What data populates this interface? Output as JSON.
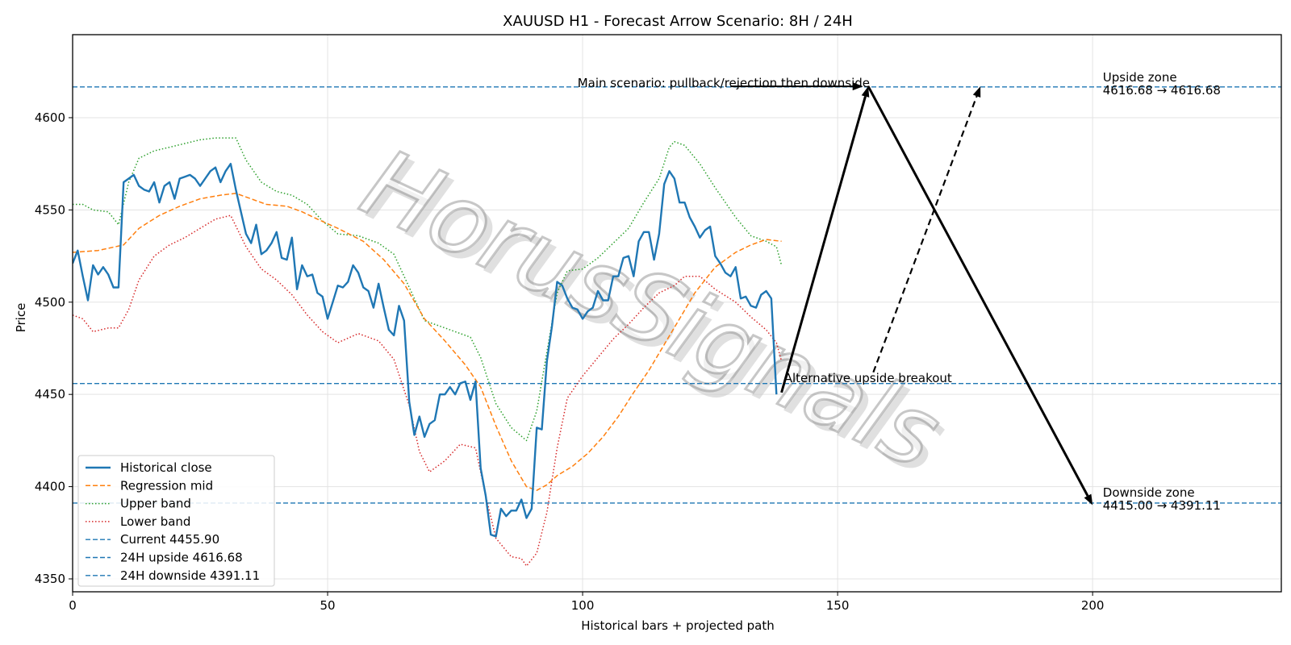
{
  "chart_data": {
    "type": "line",
    "title": "XAUUSD H1 - Forecast Arrow Scenario: 8H / 24H",
    "xlabel": "Historical bars + projected path",
    "ylabel": "Price",
    "xlim": [
      0,
      237
    ],
    "ylim": [
      4343,
      4645
    ],
    "grid": true,
    "legend_position": "lower-left",
    "x_ticks": [
      0,
      50,
      100,
      150,
      200
    ],
    "x_tick_labels": [
      "0",
      "50",
      "100",
      "150",
      "200"
    ],
    "y_ticks": [
      4350,
      4400,
      4450,
      4500,
      4550,
      4600
    ],
    "y_tick_labels": [
      "4350",
      "4400",
      "4450",
      "4500",
      "4550",
      "4600"
    ],
    "colors": {
      "historical_close": "#1f77b4",
      "regression_mid": "#ff7f0e",
      "upper_band": "#2ca02c",
      "lower_band": "#d62728",
      "hlines": "#1f77b4",
      "arrows": "#000000"
    },
    "series": [
      {
        "name": "Historical close",
        "style": "solid",
        "x": [
          0,
          1,
          2,
          3,
          4,
          5,
          6,
          7,
          8,
          9,
          10,
          11,
          12,
          13,
          14,
          15,
          16,
          17,
          18,
          19,
          20,
          21,
          22,
          23,
          24,
          25,
          26,
          27,
          28,
          29,
          30,
          31,
          32,
          33,
          34,
          35,
          36,
          37,
          38,
          39,
          40,
          41,
          42,
          43,
          44,
          45,
          46,
          47,
          48,
          49,
          50,
          51,
          52,
          53,
          54,
          55,
          56,
          57,
          58,
          59,
          60,
          61,
          62,
          63,
          64,
          65,
          66,
          67,
          68,
          69,
          70,
          71,
          72,
          73,
          74,
          75,
          76,
          77,
          78,
          79,
          80,
          81,
          82,
          83,
          84,
          85,
          86,
          87,
          88,
          89,
          90,
          91,
          92,
          93,
          94,
          95,
          96,
          97,
          98,
          99,
          100,
          101,
          102,
          103,
          104,
          105,
          106,
          107,
          108,
          109,
          110,
          111,
          112,
          113,
          114,
          115,
          116,
          117,
          118,
          119,
          120,
          121,
          122,
          123,
          124,
          125,
          126,
          127,
          128,
          129,
          130,
          131,
          132,
          133,
          134,
          135,
          136,
          137,
          138
        ],
        "y": [
          4521,
          4528,
          4514,
          4501,
          4520,
          4515,
          4519,
          4515,
          4508,
          4508,
          4565,
          4567,
          4569,
          4563,
          4561,
          4560,
          4565,
          4554,
          4563,
          4565,
          4556,
          4567,
          4568,
          4569,
          4567,
          4563,
          4567,
          4571,
          4573,
          4565,
          4571,
          4575,
          4561,
          4549,
          4537,
          4532,
          4542,
          4526,
          4528,
          4532,
          4538,
          4524,
          4523,
          4535,
          4507,
          4520,
          4514,
          4515,
          4505,
          4503,
          4491,
          4500,
          4509,
          4508,
          4511,
          4520,
          4516,
          4508,
          4506,
          4497,
          4510,
          4497,
          4485,
          4482,
          4498,
          4490,
          4446,
          4428,
          4438,
          4427,
          4434,
          4436,
          4450,
          4450,
          4454,
          4450,
          4456,
          4457,
          4447,
          4457,
          4410,
          4395,
          4374,
          4373,
          4388,
          4384,
          4387,
          4387,
          4393,
          4383,
          4388,
          4432,
          4431,
          4468,
          4487,
          4511,
          4509,
          4502,
          4497,
          4496,
          4491,
          4495,
          4497,
          4506,
          4501,
          4501,
          4514,
          4514,
          4524,
          4525,
          4514,
          4533,
          4538,
          4538,
          4523,
          4537,
          4564,
          4571,
          4567,
          4554,
          4554,
          4546,
          4541,
          4535,
          4539,
          4541,
          4525,
          4521,
          4516,
          4514,
          4519,
          4502,
          4503,
          4498,
          4497,
          4504,
          4506,
          4502,
          4450
        ]
      },
      {
        "name": "Regression mid",
        "style": "dashed",
        "x": [
          0,
          5,
          10,
          13,
          17,
          21,
          25,
          29,
          32,
          35,
          38,
          42,
          45,
          48,
          52,
          57,
          61,
          65,
          69,
          73,
          77,
          80,
          83,
          86,
          89,
          91,
          93,
          95,
          98,
          101,
          104,
          107,
          110,
          113,
          116,
          119,
          122,
          126,
          130,
          133,
          136,
          139
        ],
        "y": [
          4527,
          4528,
          4531,
          4540,
          4547,
          4552,
          4556,
          4558,
          4559,
          4556,
          4553,
          4552,
          4549,
          4545,
          4540,
          4533,
          4523,
          4510,
          4491,
          4479,
          4466,
          4454,
          4433,
          4414,
          4400,
          4398,
          4401,
          4406,
          4411,
          4418,
          4427,
          4438,
          4451,
          4463,
          4477,
          4491,
          4505,
          4519,
          4527,
          4531,
          4534,
          4533
        ]
      },
      {
        "name": "Upper band",
        "style": "dotted",
        "x": [
          0,
          2,
          4,
          7,
          9,
          11,
          13,
          16,
          19,
          22,
          25,
          28,
          32,
          34,
          37,
          40,
          43,
          46,
          49,
          52,
          56,
          60,
          63,
          66,
          69,
          72,
          75,
          78,
          80,
          83,
          86,
          89,
          91,
          93,
          95,
          97,
          100,
          103,
          106,
          109,
          112,
          115,
          117,
          118,
          120,
          123,
          126,
          130,
          133,
          136,
          138,
          139
        ],
        "y": [
          4553,
          4553,
          4550,
          4549,
          4542,
          4565,
          4578,
          4582,
          4584,
          4586,
          4588,
          4589,
          4589,
          4577,
          4565,
          4560,
          4558,
          4553,
          4544,
          4537,
          4536,
          4532,
          4526,
          4508,
          4490,
          4487,
          4484,
          4481,
          4470,
          4445,
          4432,
          4425,
          4441,
          4473,
          4505,
          4517,
          4518,
          4524,
          4532,
          4540,
          4554,
          4567,
          4584,
          4587,
          4585,
          4575,
          4562,
          4546,
          4536,
          4533,
          4530,
          4520
        ]
      },
      {
        "name": "Lower band",
        "style": "dotted",
        "x": [
          0,
          2,
          4,
          7,
          9,
          11,
          13,
          16,
          19,
          22,
          25,
          28,
          31,
          34,
          37,
          40,
          43,
          46,
          49,
          52,
          56,
          60,
          63,
          66,
          68,
          70,
          73,
          76,
          79,
          81,
          83,
          86,
          88,
          89,
          91,
          93,
          95,
          97,
          100,
          103,
          106,
          109,
          112,
          115,
          118,
          120,
          123,
          126,
          130,
          133,
          136,
          138,
          139
        ],
        "y": [
          4493,
          4491,
          4484,
          4486,
          4486,
          4496,
          4512,
          4525,
          4531,
          4535,
          4540,
          4545,
          4547,
          4530,
          4518,
          4512,
          4504,
          4493,
          4484,
          4478,
          4483,
          4479,
          4469,
          4444,
          4419,
          4408,
          4414,
          4423,
          4421,
          4395,
          4372,
          4362,
          4361,
          4357,
          4364,
          4386,
          4421,
          4448,
          4460,
          4470,
          4480,
          4488,
          4497,
          4505,
          4509,
          4514,
          4514,
          4507,
          4500,
          4492,
          4485,
          4478,
          4468
        ]
      }
    ],
    "hlines": [
      {
        "name": "Current 4455.90",
        "y": 4455.9
      },
      {
        "name": "24H upside 4616.68",
        "y": 4616.68
      },
      {
        "name": "24H downside 4391.11",
        "y": 4391.11
      }
    ],
    "arrows": [
      {
        "name": "main-up",
        "from": [
          139,
          4451
        ],
        "to": [
          156,
          4617
        ],
        "style": "solid"
      },
      {
        "name": "main-down",
        "from": [
          156,
          4617
        ],
        "to": [
          200,
          4390
        ],
        "style": "solid"
      },
      {
        "name": "alternative",
        "from": [
          157,
          4462
        ],
        "to": [
          178,
          4617
        ],
        "style": "dashed"
      },
      {
        "name": "main-pointer",
        "from": [
          129,
          4617
        ],
        "to": [
          155,
          4617
        ],
        "style": "solid"
      }
    ],
    "annotations": [
      {
        "text": "Main scenario: pullback/rejection then downside",
        "x": 99,
        "y": 4617
      },
      {
        "text": "Alternative upside breakout",
        "x": 139.5,
        "y": 4457
      },
      {
        "text": "Upside zone",
        "x": 202,
        "y": 4620
      },
      {
        "text": "4616.68 → 4616.68",
        "x": 202,
        "y": 4613
      },
      {
        "text": "Downside zone",
        "x": 202,
        "y": 4395
      },
      {
        "text": "4415.00 → 4391.11",
        "x": 202,
        "y": 4388
      }
    ],
    "watermark": "HorusSignals",
    "legend": [
      "Historical close",
      "Regression mid",
      "Upper band",
      "Lower band",
      "Current 4455.90",
      "24H upside 4616.68",
      "24H downside 4391.11"
    ]
  }
}
